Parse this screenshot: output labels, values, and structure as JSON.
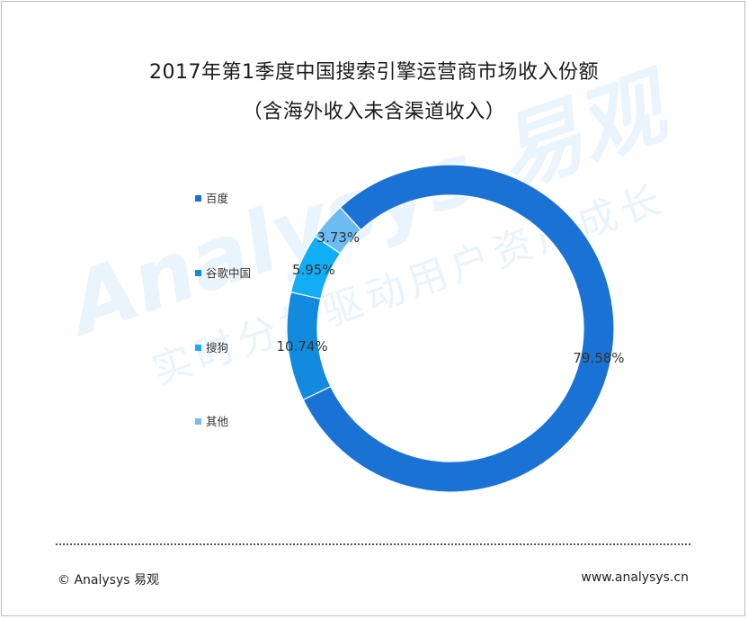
{
  "title_line1": "2017年第1季度中国搜索引擎运营商市场收入份额",
  "title_line2": "（含海外收入未含渠道收入）",
  "chart_data": {
    "type": "pie",
    "style": "donut",
    "categories": [
      "百度",
      "谷歌中国",
      "搜狗",
      "其他"
    ],
    "values": [
      79.58,
      10.74,
      5.95,
      3.73
    ],
    "labels": [
      "79.58%",
      "10.74%",
      "5.95%",
      "3.73%"
    ],
    "colors": [
      "#1a73d4",
      "#128bdf",
      "#12aef5",
      "#6cbcf3"
    ],
    "legend_position": "left"
  },
  "watermark": {
    "brand": "Analysys 易观",
    "slogan": "实时分析驱动用户资产成长"
  },
  "footer": {
    "copyright": "© Analysys 易观",
    "url": "www.analysys.cn"
  }
}
